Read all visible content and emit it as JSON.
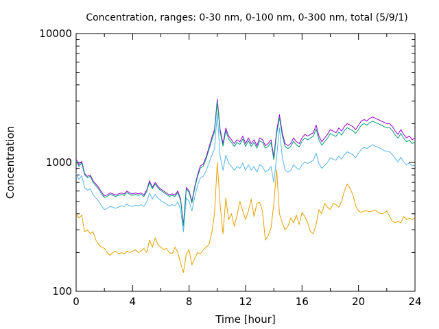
{
  "chart_data": {
    "type": "line",
    "title": "Concentration, ranges: 0-30 nm, 0-100 nm, 0-300 nm, total (5/9/1)",
    "xlabel": "Time [hour]",
    "ylabel": "Concentration",
    "xlim": [
      0,
      24
    ],
    "ylim": [
      100,
      10000
    ],
    "yscale": "log",
    "grid": false,
    "legend": "none",
    "x_ticks": [
      0,
      4,
      8,
      12,
      16,
      20,
      24
    ],
    "x_tick_labels": [
      "0",
      "4",
      "8",
      "12",
      "16",
      "20",
      "24"
    ],
    "y_ticks": [
      100,
      1000,
      10000
    ],
    "y_tick_labels": [
      "100",
      "1000",
      "10000"
    ],
    "series": [
      {
        "color": "#9400d3",
        "x": [
          0,
          0.2,
          0.4,
          0.6,
          0.8,
          1.0,
          1.2,
          1.4,
          1.6,
          1.8,
          2.0,
          2.2,
          2.4,
          2.6,
          2.8,
          3.0,
          3.2,
          3.4,
          3.6,
          3.8,
          4.0,
          4.2,
          4.4,
          4.6,
          4.8,
          5.0,
          5.2,
          5.4,
          5.6,
          5.8,
          6.0,
          6.2,
          6.4,
          6.6,
          6.8,
          7.0,
          7.2,
          7.4,
          7.6,
          7.8,
          8.0,
          8.2,
          8.4,
          8.6,
          8.8,
          9.0,
          9.2,
          9.4,
          9.6,
          9.8,
          10.0,
          10.2,
          10.4,
          10.6,
          10.8,
          11.0,
          11.2,
          11.4,
          11.6,
          11.8,
          12.0,
          12.2,
          12.4,
          12.6,
          12.8,
          13.0,
          13.2,
          13.4,
          13.6,
          13.8,
          14.0,
          14.2,
          14.4,
          14.6,
          14.8,
          15.0,
          15.2,
          15.4,
          15.6,
          15.8,
          16.0,
          16.2,
          16.4,
          16.6,
          16.8,
          17.0,
          17.2,
          17.4,
          17.6,
          17.8,
          18.0,
          18.2,
          18.4,
          18.6,
          18.8,
          19.0,
          19.2,
          19.4,
          19.6,
          19.8,
          20.0,
          20.2,
          20.4,
          20.6,
          20.8,
          21.0,
          21.2,
          21.4,
          21.6,
          21.8,
          22.0,
          22.2,
          22.4,
          22.6,
          22.8,
          23.0,
          23.2,
          23.4,
          23.6,
          23.8,
          24.0
        ],
        "values": [
          1060,
          960,
          1020,
          820,
          780,
          800,
          720,
          680,
          640,
          590,
          550,
          560,
          580,
          570,
          560,
          570,
          580,
          570,
          600,
          580,
          570,
          580,
          570,
          580,
          560,
          610,
          720,
          640,
          700,
          650,
          620,
          600,
          580,
          560,
          570,
          560,
          600,
          520,
          330,
          640,
          600,
          500,
          650,
          800,
          940,
          970,
          1100,
          1300,
          1550,
          1800,
          3100,
          1800,
          1400,
          1850,
          1600,
          1500,
          1400,
          1500,
          1450,
          1600,
          1400,
          1550,
          1400,
          1500,
          1350,
          1550,
          1500,
          1350,
          1400,
          1500,
          1100,
          1750,
          2350,
          1700,
          1400,
          1350,
          1400,
          1550,
          1450,
          1400,
          1550,
          1650,
          1600,
          1650,
          1700,
          1950,
          1600,
          1450,
          1550,
          1650,
          1800,
          1750,
          1700,
          1850,
          1750,
          1900,
          2000,
          1950,
          1900,
          1800,
          1950,
          2100,
          2150,
          2100,
          2200,
          2250,
          2200,
          2150,
          2100,
          2050,
          2000,
          2000,
          1900,
          1750,
          1650,
          1800,
          1650,
          1550,
          1600,
          1500,
          1550
        ]
      },
      {
        "color": "#009e73",
        "x": [
          0,
          0.2,
          0.4,
          0.6,
          0.8,
          1.0,
          1.2,
          1.4,
          1.6,
          1.8,
          2.0,
          2.2,
          2.4,
          2.6,
          2.8,
          3.0,
          3.2,
          3.4,
          3.6,
          3.8,
          4.0,
          4.2,
          4.4,
          4.6,
          4.8,
          5.0,
          5.2,
          5.4,
          5.6,
          5.8,
          6.0,
          6.2,
          6.4,
          6.6,
          6.8,
          7.0,
          7.2,
          7.4,
          7.6,
          7.8,
          8.0,
          8.2,
          8.4,
          8.6,
          8.8,
          9.0,
          9.2,
          9.4,
          9.6,
          9.8,
          10.0,
          10.2,
          10.4,
          10.6,
          10.8,
          11.0,
          11.2,
          11.4,
          11.6,
          11.8,
          12.0,
          12.2,
          12.4,
          12.6,
          12.8,
          13.0,
          13.2,
          13.4,
          13.6,
          13.8,
          14.0,
          14.2,
          14.4,
          14.6,
          14.8,
          15.0,
          15.2,
          15.4,
          15.6,
          15.8,
          16.0,
          16.2,
          16.4,
          16.6,
          16.8,
          17.0,
          17.2,
          17.4,
          17.6,
          17.8,
          18.0,
          18.2,
          18.4,
          18.6,
          18.8,
          19.0,
          19.2,
          19.4,
          19.6,
          19.8,
          20.0,
          20.2,
          20.4,
          20.6,
          20.8,
          21.0,
          21.2,
          21.4,
          21.6,
          21.8,
          22.0,
          22.2,
          22.4,
          22.6,
          22.8,
          23.0,
          23.2,
          23.4,
          23.6,
          23.8,
          24.0
        ],
        "values": [
          1030,
          930,
          990,
          800,
          760,
          780,
          700,
          660,
          620,
          570,
          535,
          545,
          565,
          555,
          545,
          555,
          565,
          555,
          585,
          565,
          555,
          565,
          555,
          565,
          545,
          595,
          700,
          625,
          680,
          635,
          605,
          585,
          565,
          545,
          555,
          545,
          585,
          505,
          320,
          620,
          585,
          485,
          630,
          775,
          905,
          935,
          1060,
          1250,
          1480,
          1720,
          2950,
          1720,
          1340,
          1760,
          1520,
          1430,
          1330,
          1430,
          1380,
          1520,
          1330,
          1470,
          1330,
          1430,
          1290,
          1470,
          1430,
          1290,
          1330,
          1430,
          1050,
          1660,
          2220,
          1610,
          1330,
          1280,
          1330,
          1460,
          1370,
          1320,
          1460,
          1550,
          1500,
          1550,
          1600,
          1820,
          1500,
          1360,
          1450,
          1540,
          1680,
          1630,
          1590,
          1720,
          1630,
          1770,
          1860,
          1810,
          1770,
          1680,
          1810,
          1950,
          2000,
          1950,
          2040,
          2090,
          2040,
          2000,
          1950,
          1900,
          1860,
          1860,
          1770,
          1630,
          1540,
          1680,
          1540,
          1450,
          1490,
          1400,
          1450
        ]
      },
      {
        "color": "#56b4e9",
        "x": [
          0,
          0.2,
          0.4,
          0.6,
          0.8,
          1.0,
          1.2,
          1.4,
          1.6,
          1.8,
          2.0,
          2.2,
          2.4,
          2.6,
          2.8,
          3.0,
          3.2,
          3.4,
          3.6,
          3.8,
          4.0,
          4.2,
          4.4,
          4.6,
          4.8,
          5.0,
          5.2,
          5.4,
          5.6,
          5.8,
          6.0,
          6.2,
          6.4,
          6.6,
          6.8,
          7.0,
          7.2,
          7.4,
          7.6,
          7.8,
          8.0,
          8.2,
          8.4,
          8.6,
          8.8,
          9.0,
          9.2,
          9.4,
          9.6,
          9.8,
          10.0,
          10.2,
          10.4,
          10.6,
          10.8,
          11.0,
          11.2,
          11.4,
          11.6,
          11.8,
          12.0,
          12.2,
          12.4,
          12.6,
          12.8,
          13.0,
          13.2,
          13.4,
          13.6,
          13.8,
          14.0,
          14.2,
          14.4,
          14.6,
          14.8,
          15.0,
          15.2,
          15.4,
          15.6,
          15.8,
          16.0,
          16.2,
          16.4,
          16.6,
          16.8,
          17.0,
          17.2,
          17.4,
          17.6,
          17.8,
          18.0,
          18.2,
          18.4,
          18.6,
          18.8,
          19.0,
          19.2,
          19.4,
          19.6,
          19.8,
          20.0,
          20.2,
          20.4,
          20.6,
          20.8,
          21.0,
          21.2,
          21.4,
          21.6,
          21.8,
          22.0,
          22.2,
          22.4,
          22.6,
          22.8,
          23.0,
          23.2,
          23.4,
          23.6,
          23.8,
          24.0
        ],
        "values": [
          820,
          740,
          790,
          640,
          610,
          625,
          560,
          530,
          500,
          460,
          430,
          440,
          455,
          450,
          440,
          450,
          460,
          455,
          475,
          460,
          455,
          465,
          460,
          470,
          455,
          495,
          580,
          520,
          565,
          530,
          505,
          490,
          475,
          460,
          470,
          460,
          495,
          430,
          290,
          530,
          500,
          420,
          540,
          660,
          760,
          780,
          860,
          980,
          1130,
          1270,
          2400,
          1120,
          870,
          1140,
          990,
          930,
          870,
          930,
          900,
          990,
          870,
          960,
          870,
          930,
          840,
          960,
          930,
          840,
          870,
          930,
          700,
          1100,
          1850,
          1100,
          870,
          840,
          870,
          960,
          910,
          880,
          960,
          1010,
          980,
          1010,
          1040,
          1180,
          980,
          900,
          950,
          1000,
          1090,
          1060,
          1040,
          1120,
          1060,
          1150,
          1210,
          1180,
          1150,
          1090,
          1180,
          1270,
          1310,
          1280,
          1330,
          1370,
          1330,
          1310,
          1280,
          1240,
          1210,
          1210,
          1150,
          1070,
          1010,
          1100,
          1010,
          960,
          990,
          940,
          960
        ]
      },
      {
        "color": "#e69f00",
        "x": [
          0,
          0.2,
          0.4,
          0.6,
          0.8,
          1.0,
          1.2,
          1.4,
          1.6,
          1.8,
          2.0,
          2.2,
          2.4,
          2.6,
          2.8,
          3.0,
          3.2,
          3.4,
          3.6,
          3.8,
          4.0,
          4.2,
          4.4,
          4.6,
          4.8,
          5.0,
          5.2,
          5.4,
          5.6,
          5.8,
          6.0,
          6.2,
          6.4,
          6.6,
          6.8,
          7.0,
          7.2,
          7.4,
          7.6,
          7.8,
          8.0,
          8.2,
          8.4,
          8.6,
          8.8,
          9.0,
          9.2,
          9.4,
          9.6,
          9.8,
          10.0,
          10.2,
          10.4,
          10.6,
          10.8,
          11.0,
          11.2,
          11.4,
          11.6,
          11.8,
          12.0,
          12.2,
          12.4,
          12.6,
          12.8,
          13.0,
          13.2,
          13.4,
          13.6,
          13.8,
          14.0,
          14.2,
          14.4,
          14.6,
          14.8,
          15.0,
          15.2,
          15.4,
          15.6,
          15.8,
          16.0,
          16.2,
          16.4,
          16.6,
          16.8,
          17.0,
          17.2,
          17.4,
          17.6,
          17.8,
          18.0,
          18.2,
          18.4,
          18.6,
          18.8,
          19.0,
          19.2,
          19.4,
          19.6,
          19.8,
          20.0,
          20.2,
          20.4,
          20.6,
          20.8,
          21.0,
          21.2,
          21.4,
          21.6,
          21.8,
          22.0,
          22.2,
          22.4,
          22.6,
          22.8,
          23.0,
          23.2,
          23.4,
          23.6,
          23.8,
          24.0
        ],
        "values": [
          400,
          370,
          390,
          290,
          300,
          280,
          290,
          250,
          230,
          220,
          215,
          200,
          190,
          200,
          205,
          195,
          200,
          195,
          205,
          200,
          205,
          210,
          200,
          205,
          215,
          200,
          250,
          220,
          260,
          230,
          220,
          210,
          215,
          200,
          195,
          220,
          200,
          165,
          140,
          195,
          210,
          160,
          180,
          200,
          195,
          210,
          220,
          230,
          280,
          400,
          1000,
          470,
          280,
          530,
          360,
          400,
          320,
          390,
          500,
          420,
          360,
          420,
          520,
          380,
          480,
          490,
          420,
          250,
          270,
          310,
          480,
          880,
          400,
          340,
          300,
          320,
          370,
          340,
          390,
          330,
          410,
          380,
          340,
          290,
          280,
          330,
          430,
          400,
          480,
          450,
          430,
          480,
          470,
          450,
          500,
          600,
          680,
          630,
          560,
          460,
          420,
          410,
          420,
          420,
          415,
          420,
          425,
          410,
          400,
          405,
          420,
          380,
          350,
          340,
          350,
          340,
          380,
          360,
          370,
          360,
          375
        ]
      }
    ]
  }
}
